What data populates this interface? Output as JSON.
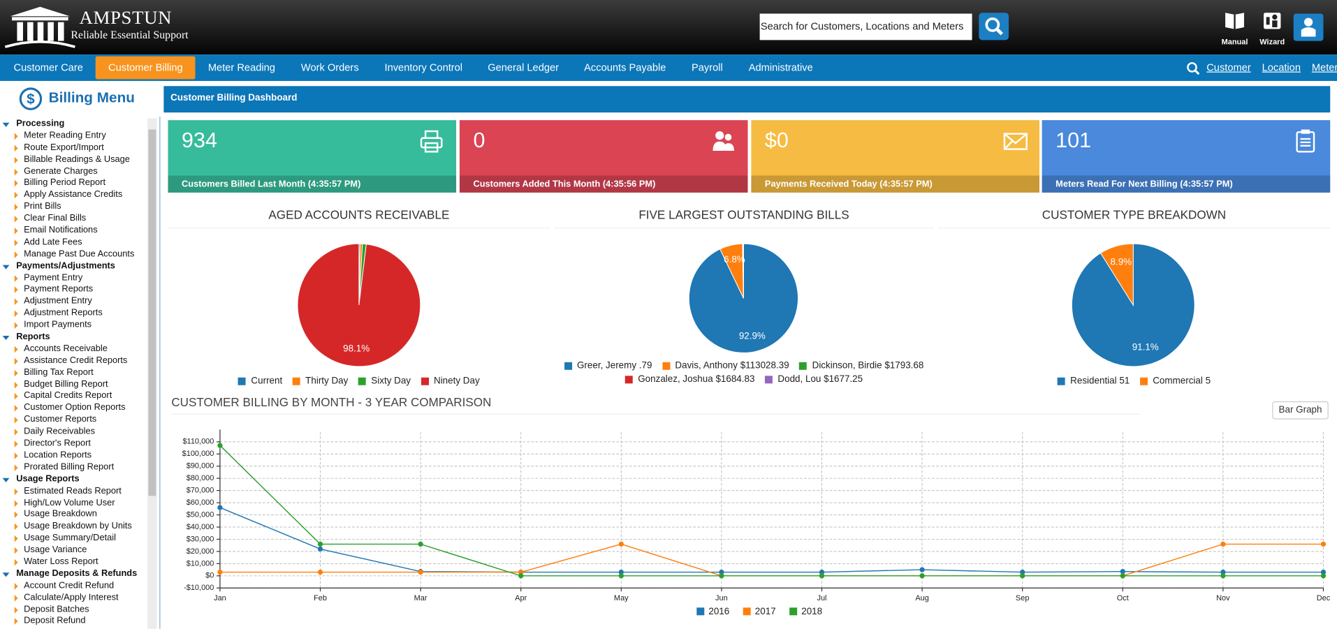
{
  "header": {
    "brand": "AMPSTUN",
    "tagline": "Reliable Essential Support",
    "search_placeholder": "Search for Customers, Locations and Meters",
    "buttons": [
      "Manual",
      "Wizard"
    ]
  },
  "nav": {
    "items": [
      {
        "label": "Customer Care"
      },
      {
        "label": "Customer Billing",
        "active": true
      },
      {
        "label": "Meter Reading"
      },
      {
        "label": "Work Orders"
      },
      {
        "label": "Inventory Control"
      },
      {
        "label": "General Ledger"
      },
      {
        "label": "Accounts Payable"
      },
      {
        "label": "Payroll"
      },
      {
        "label": "Administrative"
      }
    ],
    "quick_search": [
      "Customer",
      "Location",
      "Meter"
    ]
  },
  "sidebar": {
    "title": "Billing Menu",
    "sections": [
      {
        "title": "Processing",
        "items": [
          "Meter Reading Entry",
          "Route Export/Import",
          "Billable Readings & Usage",
          "Generate Charges",
          "Billing Period Report",
          "Apply Assistance Credits",
          "Print Bills",
          "Clear Final Bills",
          "Email Notifications",
          "Add Late Fees",
          "Manage Past Due Accounts"
        ]
      },
      {
        "title": "Payments/Adjustments",
        "items": [
          "Payment Entry",
          "Payment Reports",
          "Adjustment Entry",
          "Adjustment Reports",
          "Import Payments"
        ]
      },
      {
        "title": "Reports",
        "items": [
          "Accounts Receivable",
          "Assistance Credit Reports",
          "Billing Tax Report",
          "Budget Billing Report",
          "Capital Credits Report",
          "Customer Option Reports",
          "Customer Reports",
          "Daily Receivables",
          "Director's Report",
          "Location Reports",
          "Prorated Billing Report"
        ]
      },
      {
        "title": "Usage Reports",
        "items": [
          "Estimated Reads Report",
          "High/Low Volume User",
          "Usage Breakdown",
          "Usage Breakdown by Units",
          "Usage Summary/Detail",
          "Usage Variance",
          "Water Loss Report"
        ]
      },
      {
        "title": "Manage Deposits & Refunds",
        "items": [
          "Account Credit Refund",
          "Calculate/Apply Interest",
          "Deposit Batches",
          "Deposit Refund"
        ]
      }
    ]
  },
  "dashboard": {
    "title": "Customer Billing Dashboard",
    "tiles": [
      {
        "value": 934,
        "label": "Customers Billed Last Month (4:35:57 PM)",
        "color": "#37bc9b"
      },
      {
        "value": 0,
        "label": "Customers Added This Month (4:35:56 PM)",
        "color": "#da4453"
      },
      {
        "value": "$0",
        "label": "Payments Received Today (4:35:57 PM)",
        "color": "#f6bb42"
      },
      {
        "value": 101,
        "label": "Meters Read For Next Billing (4:35:57 PM)",
        "color": "#4a89dc"
      }
    ],
    "bar_graph_button": "Bar Graph",
    "charts": [
      {
        "type": "pie",
        "title": "AGED ACCOUNTS RECEIVABLE",
        "categories": [
          "Current",
          "Thirty Day",
          "Sixty Day",
          "Ninety Day"
        ],
        "values": [
          0.3,
          0.6,
          1.0,
          98.1
        ],
        "value_labels": [
          null,
          null,
          null,
          "98.1%"
        ],
        "colors": [
          "#1f77b4",
          "#ff7f0e",
          "#2ca02c",
          "#d62728"
        ]
      },
      {
        "type": "pie",
        "title": "FIVE LARGEST OUTSTANDING BILLS",
        "categories": [
          "Greer, Jeremy .79",
          "Davis, Anthony $113028.39",
          "Dickinson, Birdie $1793.68",
          "Gonzalez, Joshua $1684.83",
          "Dodd, Lou $1677.25"
        ],
        "values": [
          92.9,
          6.8,
          0.1,
          0.1,
          0.1
        ],
        "value_labels": [
          "92.9%",
          "6.8%",
          null,
          null,
          null
        ],
        "colors": [
          "#1f77b4",
          "#ff7f0e",
          "#2ca02c",
          "#d62728",
          "#9467bd"
        ]
      },
      {
        "type": "pie",
        "title": "CUSTOMER TYPE BREAKDOWN",
        "categories": [
          "Residential 51",
          "Commercial 5"
        ],
        "values": [
          91.1,
          8.9
        ],
        "value_labels": [
          "91.1%",
          "8.9%"
        ],
        "colors": [
          "#1f77b4",
          "#ff7f0e"
        ]
      },
      {
        "type": "line",
        "title": "CUSTOMER BILLING BY MONTH - 3 YEAR COMPARISON",
        "categories": [
          "Jan",
          "Feb",
          "Mar",
          "Apr",
          "May",
          "Jun",
          "Jul",
          "Aug",
          "Sep",
          "Oct",
          "Nov",
          "Dec"
        ],
        "series": [
          {
            "name": "2016",
            "color": "#1f77b4",
            "values": [
              56000,
              22000,
              3500,
              3000,
              3000,
              3000,
              3000,
              5000,
              3000,
              3500,
              3000,
              3000
            ]
          },
          {
            "name": "2017",
            "color": "#ff7f0e",
            "values": [
              3000,
              3000,
              3000,
              3000,
              26000,
              0,
              0,
              0,
              0,
              0,
              26000,
              26000
            ]
          },
          {
            "name": "2018",
            "color": "#2ca02c",
            "values": [
              107000,
              26000,
              26000,
              0,
              0,
              0,
              0,
              0,
              0,
              0,
              0,
              0
            ]
          }
        ],
        "ylim": [
          -10000,
          118000
        ],
        "yticks": [
          {
            "value": -10000,
            "label": "-$10,000"
          },
          {
            "value": 0,
            "label": "$0"
          },
          {
            "value": 10000,
            "label": "$10,000"
          },
          {
            "value": 20000,
            "label": "$20,000"
          },
          {
            "value": 30000,
            "label": "$30,000"
          },
          {
            "value": 40000,
            "label": "$40,000"
          },
          {
            "value": 50000,
            "label": "$50,000"
          },
          {
            "value": 60000,
            "label": "$60,000"
          },
          {
            "value": 70000,
            "label": "$70,000"
          },
          {
            "value": 80000,
            "label": "$80,000"
          },
          {
            "value": 90000,
            "label": "$90,000"
          },
          {
            "value": 100000,
            "label": "$100,000"
          },
          {
            "value": 110000,
            "label": "$110,000"
          }
        ],
        "grid": true
      }
    ]
  }
}
